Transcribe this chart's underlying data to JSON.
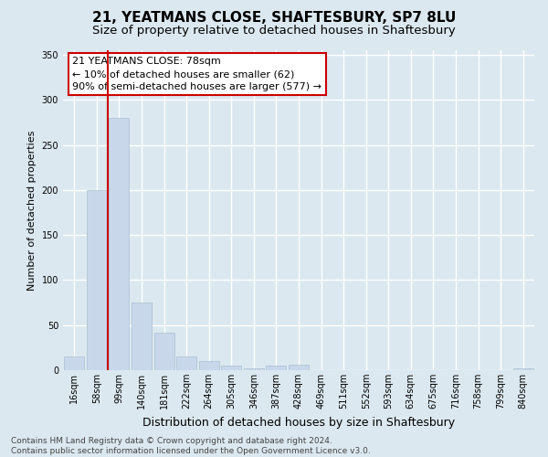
{
  "title": "21, YEATMANS CLOSE, SHAFTESBURY, SP7 8LU",
  "subtitle": "Size of property relative to detached houses in Shaftesbury",
  "xlabel": "Distribution of detached houses by size in Shaftesbury",
  "ylabel": "Number of detached properties",
  "bar_labels": [
    "16sqm",
    "58sqm",
    "99sqm",
    "140sqm",
    "181sqm",
    "222sqm",
    "264sqm",
    "305sqm",
    "346sqm",
    "387sqm",
    "428sqm",
    "469sqm",
    "511sqm",
    "552sqm",
    "593sqm",
    "634sqm",
    "675sqm",
    "716sqm",
    "758sqm",
    "799sqm",
    "840sqm"
  ],
  "bar_values": [
    15,
    200,
    280,
    75,
    42,
    15,
    10,
    5,
    2,
    5,
    6,
    0,
    0,
    0,
    0,
    0,
    0,
    0,
    0,
    0,
    2
  ],
  "bar_color": "#c8d8ea",
  "bar_edge_color": "#a8c0d0",
  "vline_color": "#cc0000",
  "ylim": [
    0,
    355
  ],
  "yticks": [
    0,
    50,
    100,
    150,
    200,
    250,
    300,
    350
  ],
  "annotation_title": "21 YEATMANS CLOSE: 78sqm",
  "annotation_line1": "← 10% of detached houses are smaller (62)",
  "annotation_line2": "90% of semi-detached houses are larger (577) →",
  "annotation_box_color": "#ffffff",
  "annotation_border_color": "#cc0000",
  "footer1": "Contains HM Land Registry data © Crown copyright and database right 2024.",
  "footer2": "Contains public sector information licensed under the Open Government Licence v3.0.",
  "background_color": "#dce8f0",
  "plot_bg_color": "#dce8f0",
  "grid_color": "#ffffff",
  "title_fontsize": 11,
  "subtitle_fontsize": 9.5,
  "xlabel_fontsize": 9,
  "ylabel_fontsize": 8,
  "tick_fontsize": 7,
  "footer_fontsize": 6.5,
  "annot_fontsize": 8
}
